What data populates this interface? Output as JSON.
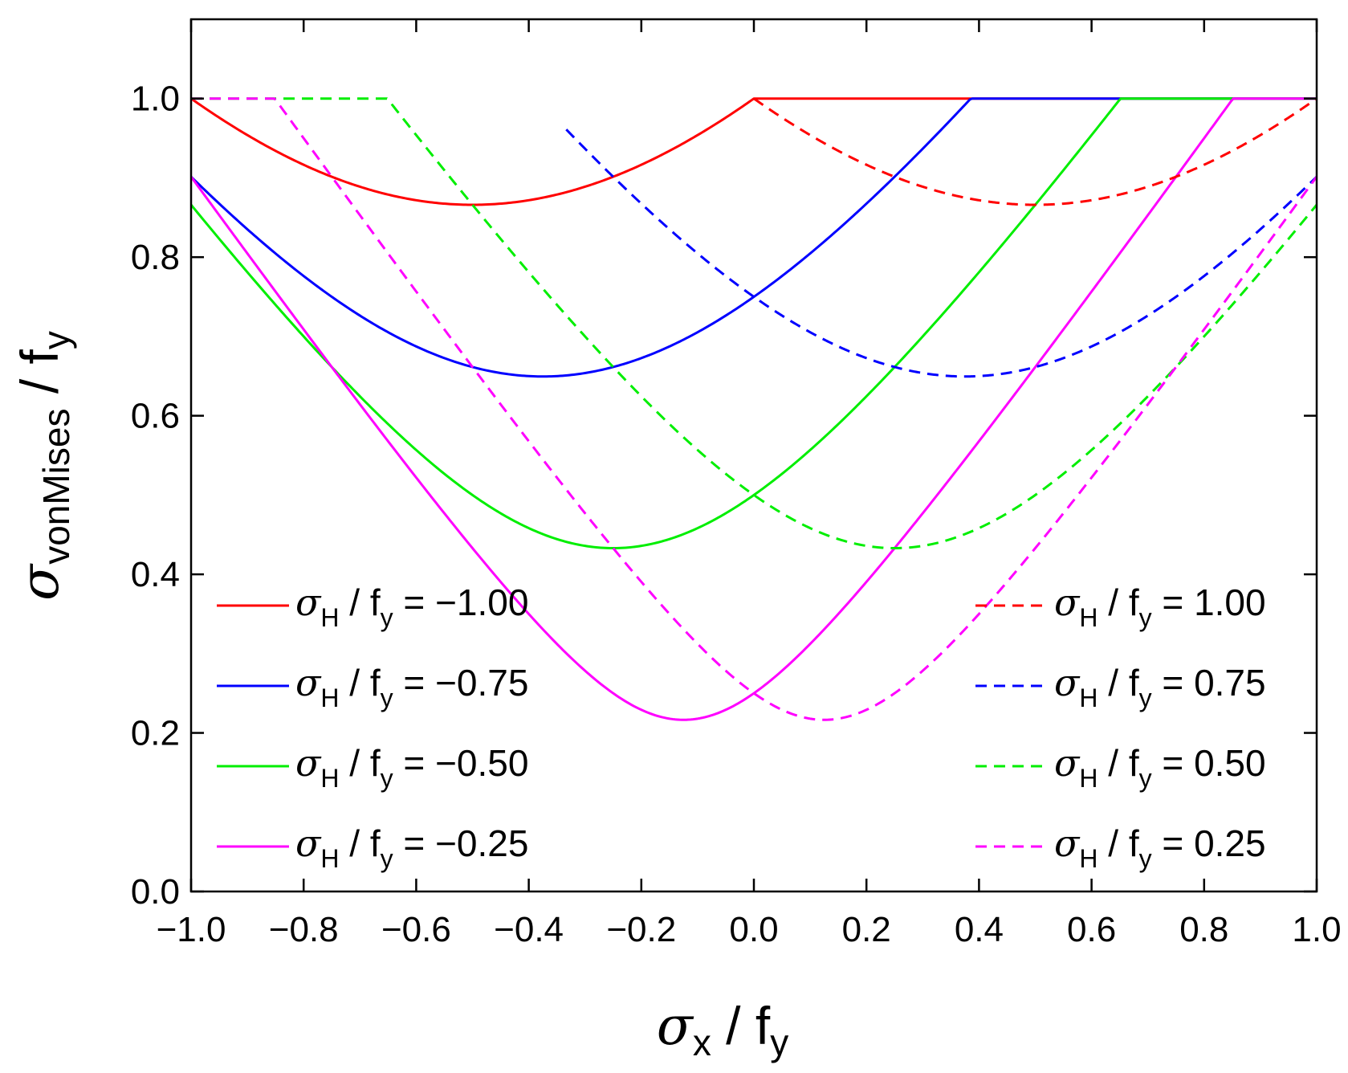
{
  "chart_data": {
    "type": "line",
    "title": "",
    "xlabel": {
      "symbol": "σ",
      "sub": "x",
      "rest": " / f",
      "rest_sub": "y"
    },
    "ylabel": {
      "symbol": "σ",
      "sub": "vonMises",
      "rest": " / f",
      "rest_sub": "y"
    },
    "xlim": [
      -1.0,
      1.0
    ],
    "ylim": [
      0.0,
      1.1
    ],
    "xticks": [
      -1.0,
      -0.8,
      -0.6,
      -0.4,
      -0.2,
      0.0,
      0.2,
      0.4,
      0.6,
      0.8,
      1.0
    ],
    "xtick_labels": [
      "−1.0",
      "−0.8",
      "−0.6",
      "−0.4",
      "−0.2",
      "0.0",
      "0.2",
      "0.4",
      "0.6",
      "0.8",
      "1.0"
    ],
    "yticks": [
      0.0,
      0.2,
      0.4,
      0.6,
      0.8,
      1.0
    ],
    "ytick_labels": [
      "0.0",
      "0.2",
      "0.4",
      "0.6",
      "0.8",
      "1.0"
    ],
    "grid": false,
    "series_model": "sigma_vonMises / f_y = min(1, sqrt(x^2 - x*h + h^2)) where x = sigma_x / f_y and h = sigma_H / f_y; dashed curves are drawn only where x >= 1 - 1/h",
    "series": [
      {
        "name": "σH / fy = −1.00",
        "h": -1.0,
        "value_text": "−1.00",
        "color": "#ff0000",
        "style": "solid",
        "legend": "left"
      },
      {
        "name": "σH / fy = −0.75",
        "h": -0.75,
        "value_text": "−0.75",
        "color": "#0000ff",
        "style": "solid",
        "legend": "left"
      },
      {
        "name": "σH / fy = −0.50",
        "h": -0.5,
        "value_text": "−0.50",
        "color": "#00ee00",
        "style": "solid",
        "legend": "left"
      },
      {
        "name": "σH / fy = −0.25",
        "h": -0.25,
        "value_text": "−0.25",
        "color": "#ff00ff",
        "style": "solid",
        "legend": "left"
      },
      {
        "name": "σH / fy = 1.00",
        "h": 1.0,
        "value_text": "1.00",
        "color": "#ff0000",
        "style": "dashed",
        "legend": "right"
      },
      {
        "name": "σH / fy = 0.75",
        "h": 0.75,
        "value_text": "0.75",
        "color": "#0000ff",
        "style": "dashed",
        "legend": "right"
      },
      {
        "name": "σH / fy = 0.50",
        "h": 0.5,
        "value_text": "0.50",
        "color": "#00ee00",
        "style": "dashed",
        "legend": "right"
      },
      {
        "name": "σH / fy = 0.25",
        "h": 0.25,
        "value_text": "0.25",
        "color": "#ff00ff",
        "style": "dashed",
        "legend": "right"
      }
    ],
    "legend": {
      "symbol": "σ",
      "sub": "H",
      "rest": " / f",
      "rest_sub": "y",
      "equals": " = "
    }
  }
}
